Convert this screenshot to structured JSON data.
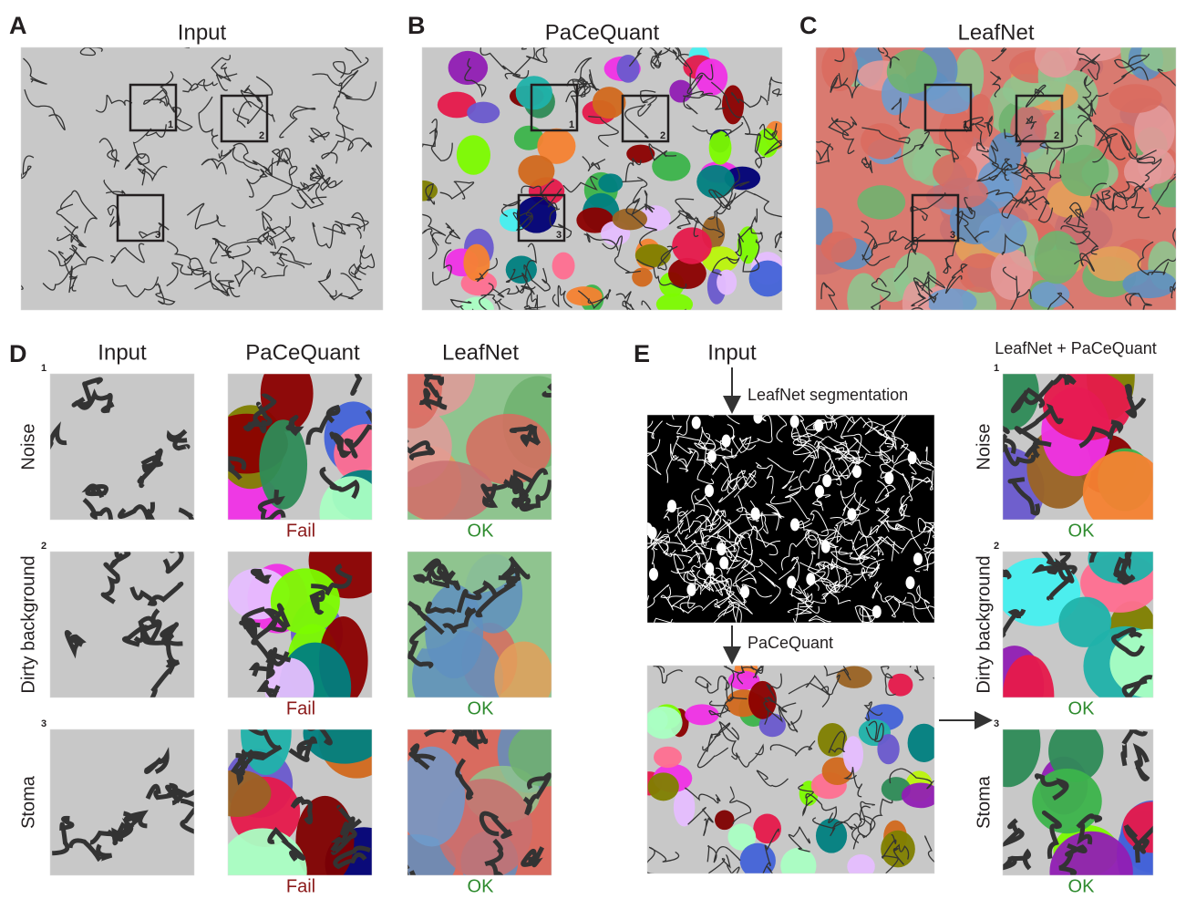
{
  "panels": [
    {
      "letter": "A",
      "title": "Input",
      "box_labels": [
        "1",
        "2",
        "3"
      ]
    },
    {
      "letter": "B",
      "title": "PaCeQuant",
      "box_labels": [
        "1",
        "2",
        "3"
      ]
    },
    {
      "letter": "C",
      "title": "LeafNet",
      "box_labels": [
        "1",
        "2",
        "3"
      ]
    }
  ],
  "panel_d": {
    "letter": "D",
    "columns": [
      "Input",
      "PaCeQuant",
      "LeafNet"
    ],
    "rows": [
      {
        "number": "1",
        "label": "Noise",
        "results": [
          "Fail",
          "OK"
        ]
      },
      {
        "number": "2",
        "label": "Dirty background",
        "results": [
          "Fail",
          "OK"
        ]
      },
      {
        "number": "3",
        "label": "Stoma",
        "results": [
          "Fail",
          "OK"
        ]
      }
    ]
  },
  "panel_e": {
    "letter": "E",
    "input": "Input",
    "step1": "LeafNet segmentation",
    "step2": "PaCeQuant",
    "column_title": "LeafNet + PaCeQuant",
    "rows": [
      {
        "number": "1",
        "label": "Noise",
        "result": "OK"
      },
      {
        "number": "2",
        "label": "Dirty background",
        "result": "OK"
      },
      {
        "number": "3",
        "label": "Stoma",
        "result": "OK"
      }
    ]
  }
}
